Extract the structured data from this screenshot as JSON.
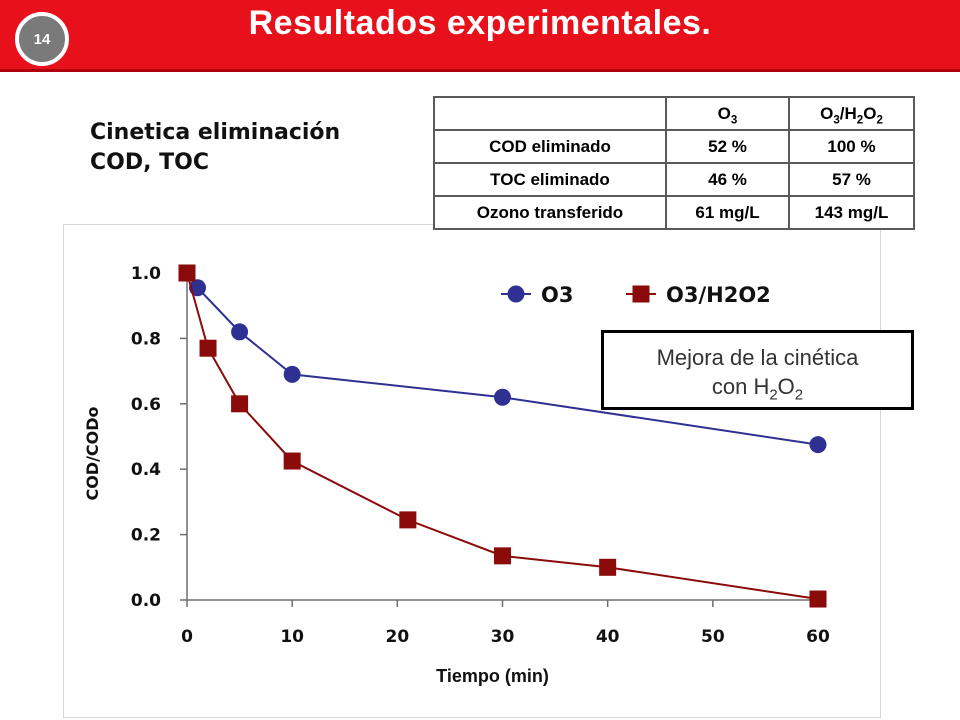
{
  "header": {
    "slide_number": "14",
    "title": "Resultados experimentales."
  },
  "subtitle": {
    "line1": "Cinetica eliminación",
    "line2": "COD, TOC"
  },
  "summary_table": {
    "columns": [
      "",
      "O3",
      "O3/H2O2"
    ],
    "rows": [
      {
        "label": "COD eliminado",
        "o3": "52 %",
        "o3_h2o2": "100 %"
      },
      {
        "label": "TOC eliminado",
        "o3": "46 %",
        "o3_h2o2": "57 %"
      },
      {
        "label": "Ozono transferido",
        "o3": "61 mg/L",
        "o3_h2o2": "143 mg/L"
      }
    ]
  },
  "callout": {
    "line1": "Mejora de la cinética",
    "line2_prefix": "con ",
    "line2_formula": "H2O2"
  },
  "chart_data": {
    "type": "line",
    "xlabel": "Tiempo (min)",
    "ylabel": "COD/CODo",
    "xlim": [
      0,
      60
    ],
    "ylim": [
      0,
      1
    ],
    "x_ticks": [
      "0",
      "10",
      "20",
      "30",
      "40",
      "50",
      "60"
    ],
    "y_ticks": [
      "0.0",
      "0.2",
      "0.4",
      "0.6",
      "0.8",
      "1.0"
    ],
    "legend": "top-right",
    "grid": false,
    "series": [
      {
        "name": "O3",
        "color": "#2e3192",
        "marker": "circle",
        "x": [
          0,
          1,
          5,
          10,
          30,
          60
        ],
        "y": [
          1.0,
          0.955,
          0.82,
          0.69,
          0.62,
          0.475
        ]
      },
      {
        "name": "O3/H2O2",
        "color": "#8b0a0a",
        "marker": "square",
        "x": [
          0,
          2,
          5,
          10,
          21,
          30,
          40,
          60
        ],
        "y": [
          1.0,
          0.77,
          0.6,
          0.425,
          0.245,
          0.135,
          0.1,
          0.003
        ]
      }
    ]
  }
}
